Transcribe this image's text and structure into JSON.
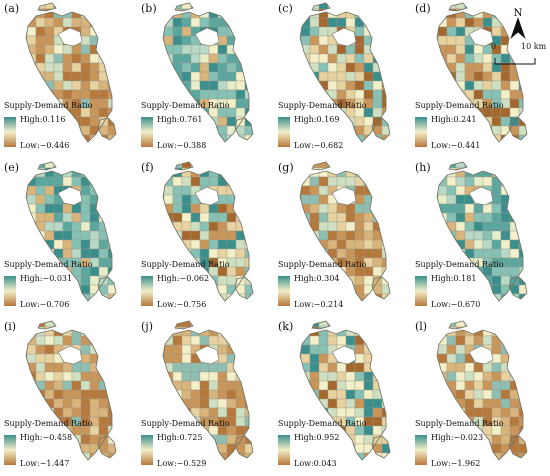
{
  "legend_title": "Supply-Demand Ratio",
  "colors": {
    "high": "#3a8f8c",
    "mid": "#f3efc9",
    "low": "#b7783b"
  },
  "panels": [
    {
      "label": "(a)",
      "high": "High:0.116",
      "low": "Low:−0.446",
      "scheme": "brown"
    },
    {
      "label": "(b)",
      "high": "High:0.761",
      "low": "Low:−0.388",
      "scheme": "teal"
    },
    {
      "label": "(c)",
      "high": "High:0.169",
      "low": "Low:−0.682",
      "scheme": "mixed"
    },
    {
      "label": "(d)",
      "high": "High:0.241",
      "low": "Low:−0.441",
      "scheme": "mixed"
    },
    {
      "label": "(e)",
      "high": "High:−0.031",
      "low": "Low:−0.706",
      "scheme": "teal"
    },
    {
      "label": "(f)",
      "high": "High:−0.062",
      "low": "Low:−0.756",
      "scheme": "mixed"
    },
    {
      "label": "(g)",
      "high": "High:0.304",
      "low": "Low:−0.214",
      "scheme": "brown"
    },
    {
      "label": "(h)",
      "high": "High:0.181",
      "low": "Low:−0.670",
      "scheme": "teal"
    },
    {
      "label": "(i)",
      "high": "High:−0.458",
      "low": "Low:−1.447",
      "scheme": "brown"
    },
    {
      "label": "(j)",
      "high": "High:0.725",
      "low": "Low:−0.529",
      "scheme": "brown"
    },
    {
      "label": "(k)",
      "high": "High:0.952",
      "low": "Low:0.043",
      "scheme": "mixed"
    },
    {
      "label": "(l)",
      "high": "High:−0.023",
      "low": "Low:−1.962",
      "scheme": "brown"
    }
  ],
  "north_arrow": "N",
  "scale": {
    "start": "0",
    "end": "10 km"
  }
}
